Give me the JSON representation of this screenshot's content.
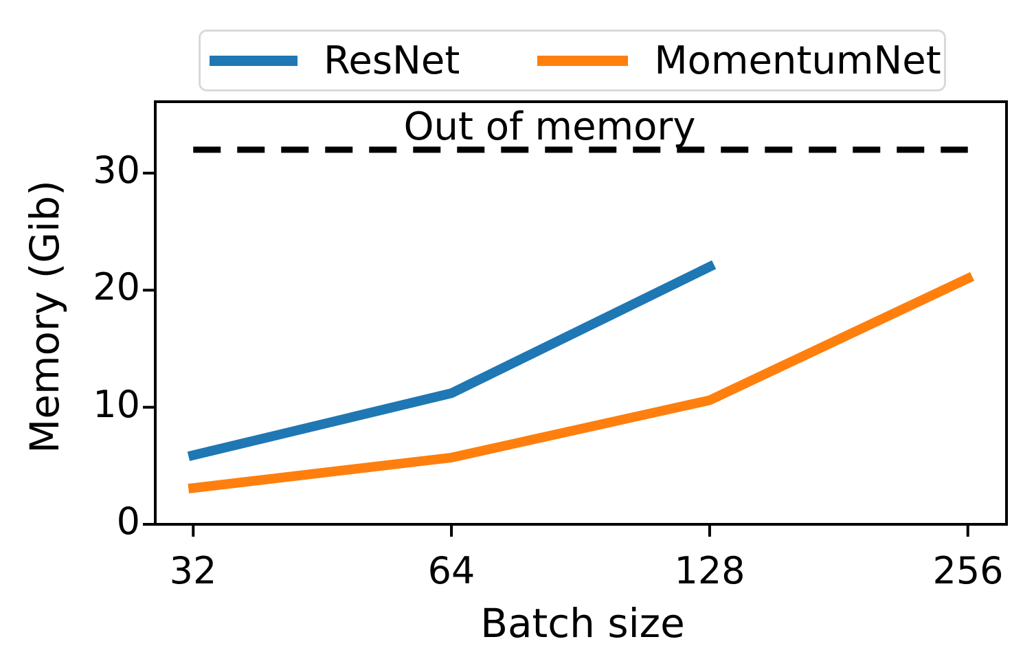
{
  "chart_data": {
    "type": "line",
    "title": "",
    "xlabel": "Batch size",
    "ylabel": "Memory (Gib)",
    "x_scale": "log2",
    "grid": false,
    "xticks": [
      32,
      64,
      128,
      256
    ],
    "yticks": [
      0,
      10,
      20,
      30
    ],
    "xlim": [
      28.9,
      284
    ],
    "ylim": [
      0,
      36.1
    ],
    "series": [
      {
        "name": "ResNet",
        "color": "#1f77b4",
        "x": [
          32,
          64,
          128
        ],
        "y": [
          5.9,
          11.2,
          22.0
        ]
      },
      {
        "name": "MomentumNet",
        "color": "#ff7f0e",
        "x": [
          32,
          64,
          128,
          256
        ],
        "y": [
          3.1,
          5.7,
          10.6,
          21.0
        ]
      }
    ],
    "annotation_line": {
      "label": "Out of memory",
      "y": 32,
      "style": "dashed",
      "color": "#000000"
    },
    "legend": {
      "position": "top",
      "entries": [
        "ResNet",
        "MomentumNet"
      ]
    },
    "axis_color": "#000000",
    "background_color": "#ffffff"
  }
}
